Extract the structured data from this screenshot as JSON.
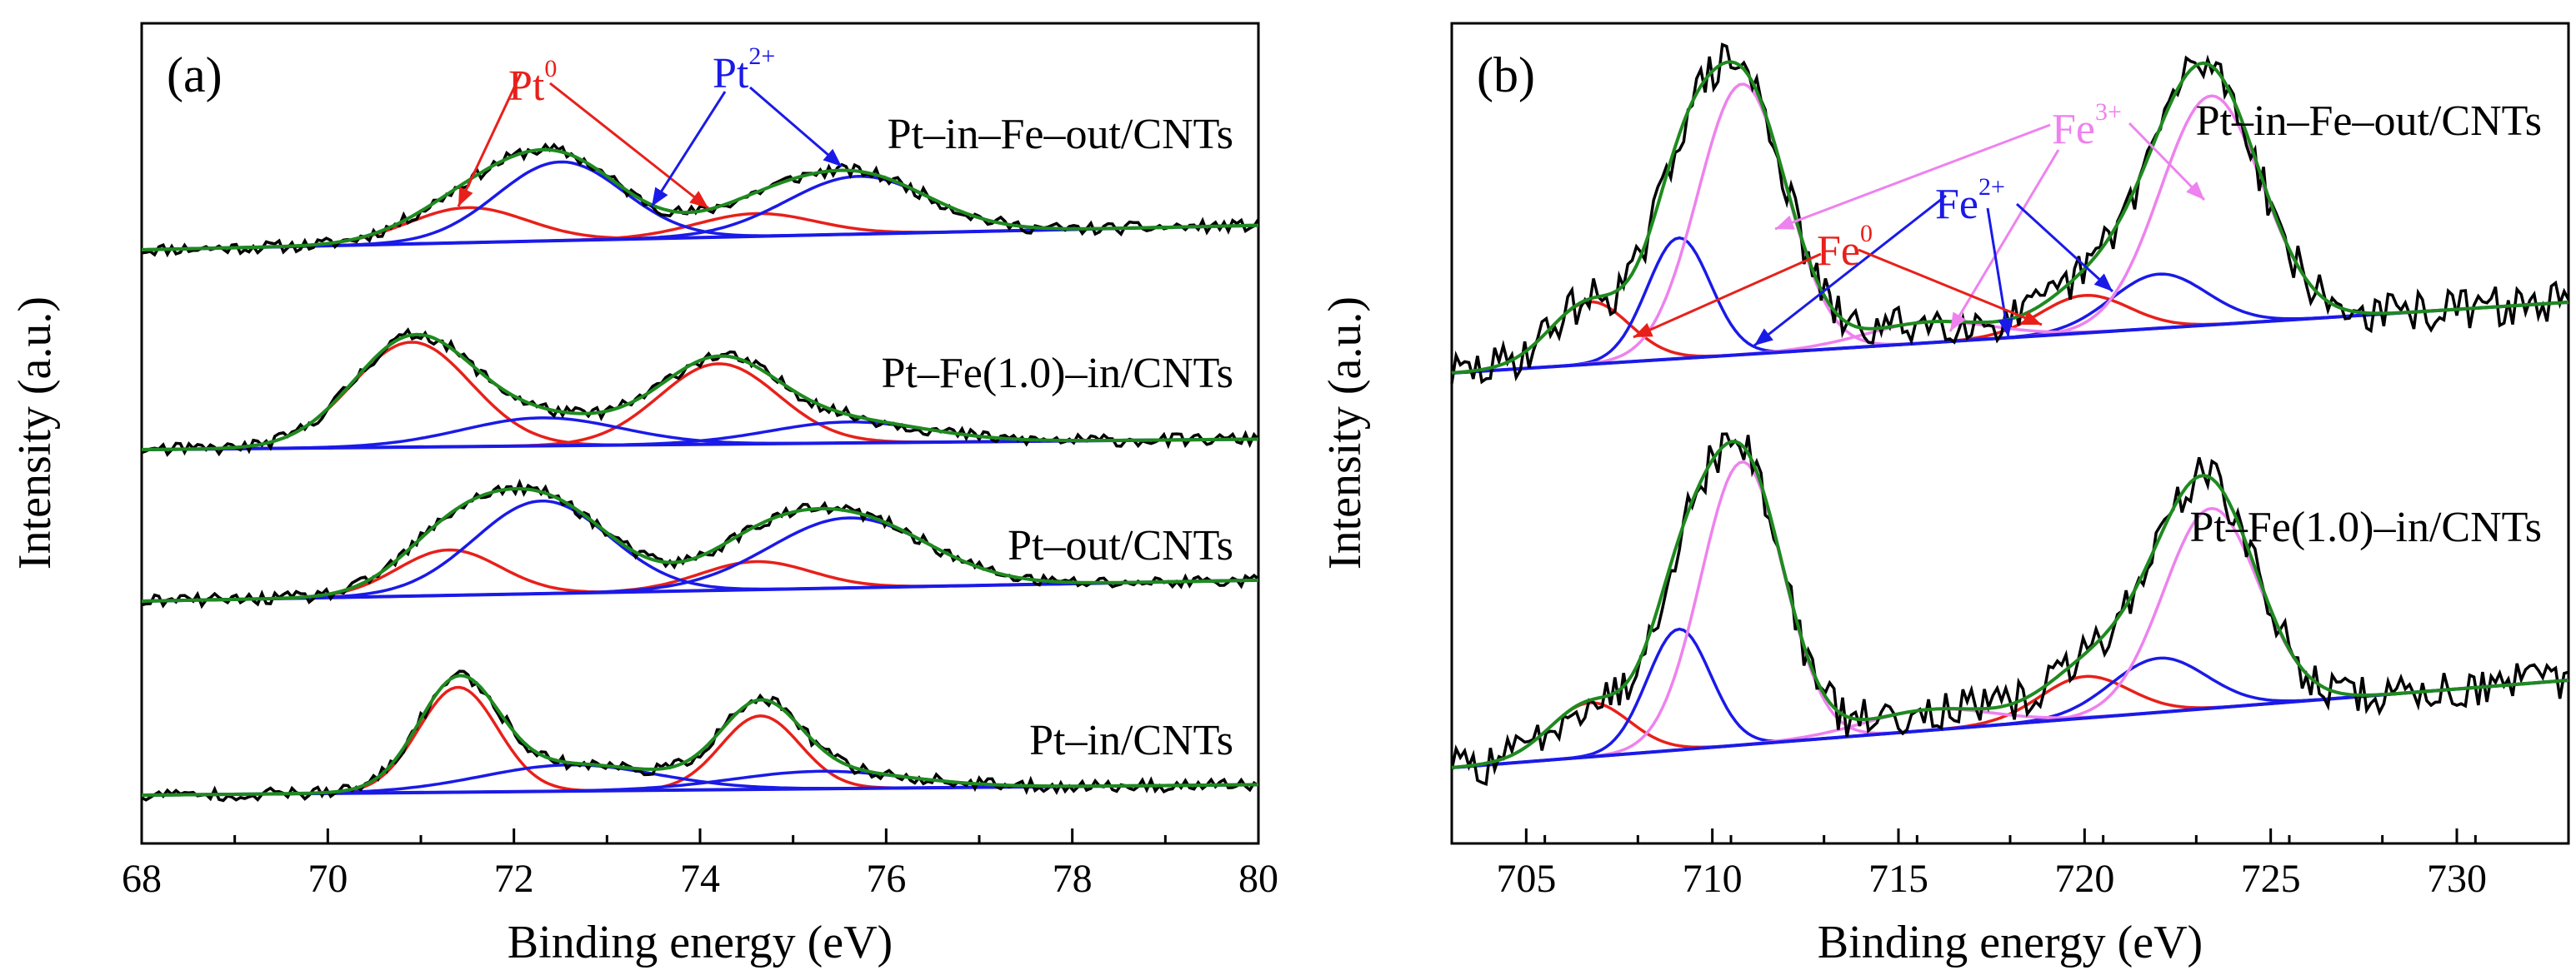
{
  "chart_data": [
    {
      "type": "line",
      "panel_label": "(a)",
      "xlabel": "Binding energy (eV)",
      "ylabel": "Intensity (a.u.)",
      "xlim": [
        68,
        80
      ],
      "xticks": [
        "68",
        "70",
        "72",
        "74",
        "76",
        "78",
        "80"
      ],
      "xtick_values": [
        68,
        70,
        72,
        74,
        76,
        78,
        80
      ],
      "yticks_shown": false,
      "colors": {
        "measured": "#000000",
        "envelope": "#1f8a1f",
        "metal": "#e8201a",
        "oxidized": "#1a1ae8",
        "baseline": "#1a1ae8"
      },
      "annotations": [
        {
          "base": "Pt",
          "sup": "0",
          "color": "#e8201a",
          "arrow_to": [
            [
              71.5,
              "Pt-in-Fe-out/CNTs"
            ],
            [
              74.2,
              "Pt-in-Fe-out/CNTs"
            ]
          ]
        },
        {
          "base": "Pt",
          "sup": "2+",
          "color": "#1a1ae8",
          "arrow_to": [
            [
              73.5,
              "Pt-in-Fe-out/CNTs"
            ],
            [
              75.5,
              "Pt-in-Fe-out/CNTs"
            ]
          ]
        }
      ],
      "series": [
        {
          "name": "Pt-in-Fe-out/CNTs",
          "label": "Pt–in–Fe–out/CNTs",
          "offset": 0,
          "baseline": [
            0.0,
            0.14
          ],
          "peaks": [
            {
              "component": "Pt0",
              "center": 71.5,
              "fwhm": 1.5,
              "height": 0.2
            },
            {
              "component": "Pt0",
              "center": 74.6,
              "fwhm": 1.5,
              "height": 0.13
            },
            {
              "component": "Pt2+",
              "center": 72.5,
              "fwhm": 1.6,
              "height": 0.45
            },
            {
              "component": "Pt2+",
              "center": 75.7,
              "fwhm": 1.8,
              "height": 0.33
            }
          ]
        },
        {
          "name": "Pt-Fe(1.0)-in/CNTs",
          "label": "Pt–Fe(1.0)–in/CNTs",
          "offset": 0,
          "baseline": [
            0.0,
            0.06
          ],
          "peaks": [
            {
              "component": "Pt0",
              "center": 70.9,
              "fwhm": 1.5,
              "height": 0.6
            },
            {
              "component": "Pt0",
              "center": 74.2,
              "fwhm": 1.5,
              "height": 0.46
            },
            {
              "component": "Pt2+",
              "center": 72.3,
              "fwhm": 2.0,
              "height": 0.16
            },
            {
              "component": "Pt2+",
              "center": 75.6,
              "fwhm": 2.0,
              "height": 0.12
            }
          ]
        },
        {
          "name": "Pt-out/CNTs",
          "label": "Pt–out/CNTs",
          "offset": 0,
          "baseline": [
            0.0,
            0.12
          ],
          "peaks": [
            {
              "component": "Pt0",
              "center": 71.3,
              "fwhm": 1.3,
              "height": 0.26
            },
            {
              "component": "Pt0",
              "center": 74.6,
              "fwhm": 1.4,
              "height": 0.16
            },
            {
              "component": "Pt2+",
              "center": 72.3,
              "fwhm": 1.7,
              "height": 0.53
            },
            {
              "component": "Pt2+",
              "center": 75.6,
              "fwhm": 2.0,
              "height": 0.4
            }
          ]
        },
        {
          "name": "Pt-in/CNTs",
          "label": "Pt–in/CNTs",
          "offset": 0,
          "baseline": [
            0.0,
            0.06
          ],
          "peaks": [
            {
              "component": "Pt0",
              "center": 71.4,
              "fwhm": 1.0,
              "height": 0.6
            },
            {
              "component": "Pt0",
              "center": 74.65,
              "fwhm": 1.0,
              "height": 0.42
            },
            {
              "component": "Pt2+",
              "center": 72.6,
              "fwhm": 2.2,
              "height": 0.15
            },
            {
              "component": "Pt2+",
              "center": 75.3,
              "fwhm": 2.2,
              "height": 0.1
            }
          ]
        }
      ]
    },
    {
      "type": "line",
      "panel_label": "(b)",
      "xlabel": "Binding energy (eV)",
      "ylabel": "Intensity (a.u.)",
      "xlim": [
        703,
        733
      ],
      "xticks": [
        "705",
        "710",
        "715",
        "720",
        "725",
        "730"
      ],
      "xtick_values": [
        705,
        710,
        715,
        720,
        725,
        730
      ],
      "yticks_shown": false,
      "colors": {
        "measured": "#000000",
        "envelope": "#1f8a1f",
        "metal": "#e8201a",
        "fe2": "#1a1ae8",
        "fe3": "#ee82ee",
        "baseline": "#1a1ae8"
      },
      "annotations": [
        {
          "base": "Fe",
          "sup": "3+",
          "color": "#ee82ee"
        },
        {
          "base": "Fe",
          "sup": "2+",
          "color": "#1a1ae8"
        },
        {
          "base": "Fe",
          "sup": "0",
          "color": "#e8201a"
        }
      ],
      "series": [
        {
          "name": "Pt-in-Fe-out/CNTs",
          "label": "Pt–in–Fe–out/CNTs",
          "baseline": [
            0.0,
            0.17
          ],
          "peaks": [
            {
              "component": "Fe0",
              "center": 706.7,
              "fwhm": 2.5,
              "height": 0.15
            },
            {
              "component": "Fe0",
              "center": 720.0,
              "fwhm": 2.8,
              "height": 0.09
            },
            {
              "component": "Fe2+",
              "center": 709.1,
              "fwhm": 2.0,
              "height": 0.29
            },
            {
              "component": "Fe2+",
              "center": 722.0,
              "fwhm": 3.0,
              "height": 0.13
            },
            {
              "component": "Fe3+",
              "center": 710.8,
              "fwhm": 2.8,
              "height": 0.65
            },
            {
              "component": "Fe3+",
              "center": 715.8,
              "fwhm": 4.0,
              "height": 0.05
            },
            {
              "component": "Fe3+",
              "center": 723.4,
              "fwhm": 3.2,
              "height": 0.55
            }
          ]
        },
        {
          "name": "Pt-Fe(1.0)-in/CNTs",
          "label": "Pt–Fe(1.0)–in/CNTs",
          "baseline": [
            0.0,
            0.21
          ],
          "peaks": [
            {
              "component": "Fe0",
              "center": 706.7,
              "fwhm": 2.5,
              "height": 0.13
            },
            {
              "component": "Fe0",
              "center": 720.0,
              "fwhm": 2.8,
              "height": 0.1
            },
            {
              "component": "Fe2+",
              "center": 709.1,
              "fwhm": 2.0,
              "height": 0.29
            },
            {
              "component": "Fe2+",
              "center": 722.0,
              "fwhm": 3.0,
              "height": 0.13
            },
            {
              "component": "Fe3+",
              "center": 710.8,
              "fwhm": 2.6,
              "height": 0.68
            },
            {
              "component": "Fe3+",
              "center": 715.8,
              "fwhm": 4.0,
              "height": 0.05
            },
            {
              "component": "Fe3+",
              "center": 723.4,
              "fwhm": 3.0,
              "height": 0.48
            }
          ]
        }
      ]
    }
  ]
}
